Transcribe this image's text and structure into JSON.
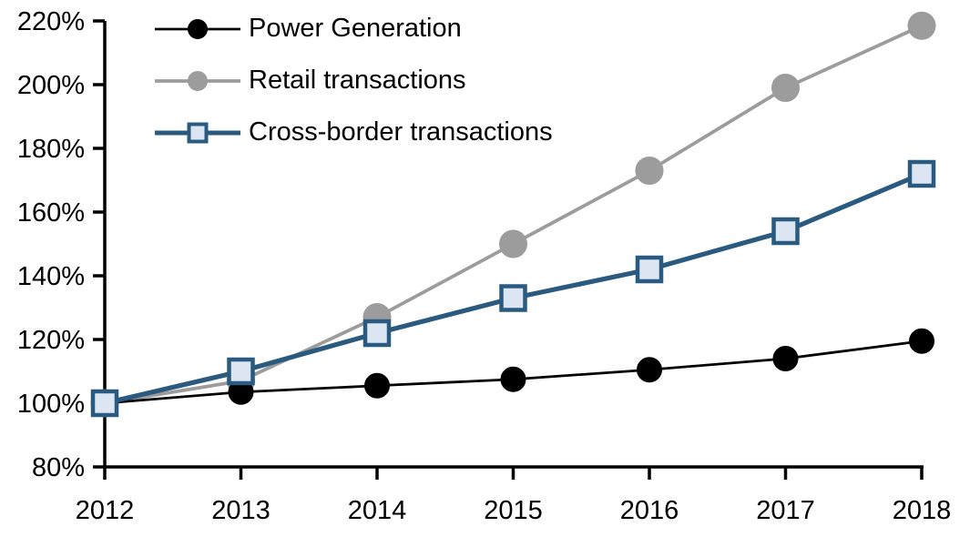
{
  "chart_data": {
    "type": "line",
    "title": "",
    "xlabel": "",
    "ylabel": "",
    "x": [
      "2012",
      "2013",
      "2014",
      "2015",
      "2016",
      "2017",
      "2018"
    ],
    "series": [
      {
        "name": "Power Generation",
        "values": [
          100,
          103.5,
          105.5,
          107.5,
          110.5,
          114,
          119.5
        ],
        "line_color": "#000000",
        "line_width": 2.8,
        "marker": "circle",
        "marker_fill": "#000000",
        "marker_stroke": "#000000",
        "marker_radius": 13.5
      },
      {
        "name": "Retail transactions",
        "values": [
          100,
          107,
          127,
          150,
          173,
          199,
          218.5
        ],
        "line_color": "#9C9C9C",
        "line_width": 3.8,
        "marker": "circle",
        "marker_fill": "#9C9C9C",
        "marker_stroke": "#9C9C9C",
        "marker_radius": 15
      },
      {
        "name": "Cross-border transactions",
        "values": [
          100,
          110,
          122,
          133,
          142,
          154,
          172
        ],
        "line_color": "#2A5A7F",
        "line_width": 5.2,
        "marker": "square",
        "marker_fill": "#DBE6F2",
        "marker_stroke": "#2A5A7F",
        "marker_size": 26,
        "marker_border": 4.5
      }
    ],
    "draw_order": [
      1,
      0,
      2
    ],
    "ylim": [
      80,
      220
    ],
    "yticks": [
      {
        "value": 80,
        "label": "80%"
      },
      {
        "value": 100,
        "label": "100%"
      },
      {
        "value": 120,
        "label": "120%"
      },
      {
        "value": 140,
        "label": "140%"
      },
      {
        "value": 160,
        "label": "160%"
      },
      {
        "value": 180,
        "label": "180%"
      },
      {
        "value": 200,
        "label": "200%"
      },
      {
        "value": 220,
        "label": "220%"
      }
    ],
    "grid": false,
    "legend_position": "top-left",
    "axis_color": "#000000",
    "background_color": "#ffffff"
  }
}
